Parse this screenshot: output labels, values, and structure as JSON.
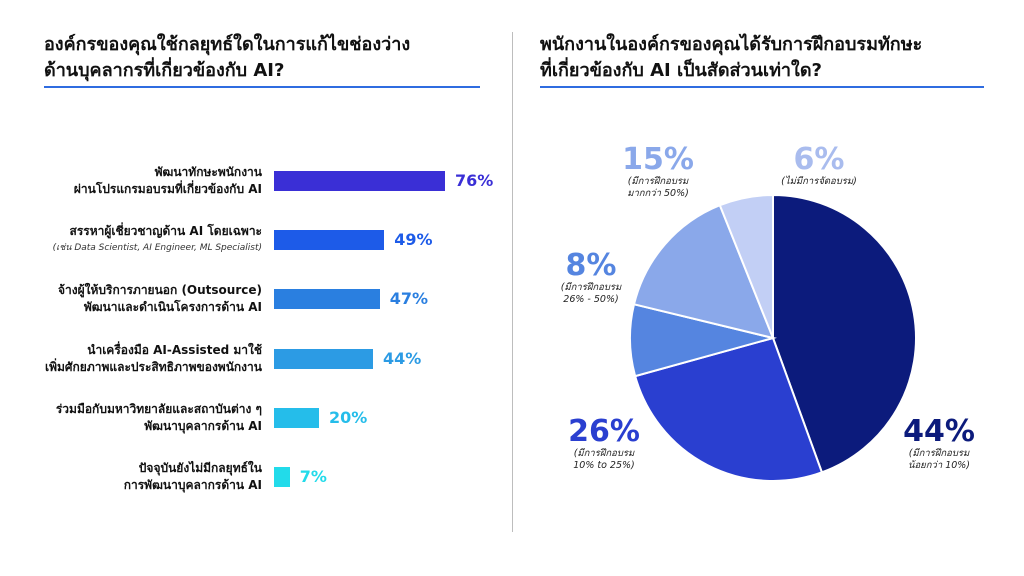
{
  "chart_data": [
    {
      "type": "bar",
      "orientation": "horizontal",
      "title": "องค์กรของคุณใช้กลยุทธ์ใดในการแก้ไขช่องว่าง ด้านบุคลากรที่เกี่ยวข้องกับ AI?",
      "title_lines": [
        "องค์กรของคุณใช้กลยุทธ์ใดในการแก้ไขช่องว่าง",
        "ด้านบุคลากรที่เกี่ยวข้องกับ AI?"
      ],
      "categories": [
        {
          "lines": [
            "พัฒนาทักษะพนักงาน",
            "ผ่านโปรแกรมอบรมที่เกี่ยวข้องกับ AI"
          ],
          "sub": ""
        },
        {
          "lines": [
            "สรรหาผู้เชี่ยวชาญด้าน AI โดยเฉพาะ"
          ],
          "sub": "(เช่น Data Scientist, AI Engineer, ML Specialist)"
        },
        {
          "lines": [
            "จ้างผู้ให้บริการภายนอก (Outsource)",
            "พัฒนาและดำเนินโครงการด้าน AI"
          ],
          "sub": ""
        },
        {
          "lines": [
            "นำเครื่องมือ AI-Assisted มาใช้",
            "เพิ่มศักยภาพและประสิทธิภาพของพนักงาน"
          ],
          "sub": ""
        },
        {
          "lines": [
            "ร่วมมือกับมหาวิทยาลัยและสถาบันต่าง ๆ",
            "พัฒนาบุคลากรด้าน AI"
          ],
          "sub": ""
        },
        {
          "lines": [
            "ปัจจุบันยังไม่มีกลยุทธ์ใน",
            "การพัฒนาบุคลากรด้าน AI"
          ],
          "sub": ""
        }
      ],
      "values": [
        76,
        49,
        47,
        44,
        20,
        7
      ],
      "value_labels": [
        "76%",
        "49%",
        "47%",
        "44%",
        "20%",
        "7%"
      ],
      "colors": [
        "#3a2fd6",
        "#1d5be8",
        "#2a7fe0",
        "#2c9be4",
        "#25bdea",
        "#22dbea"
      ],
      "label_colors": [
        "#3a2fd6",
        "#1d5be8",
        "#2a7fe0",
        "#2c9be4",
        "#25bdea",
        "#22dbea"
      ],
      "xlim": [
        0,
        100
      ]
    },
    {
      "type": "pie",
      "title": "พนักงานในองค์กรของคุณได้รับการฝึกอบรมทักษะ ที่เกี่ยวข้องกับ AI เป็นสัดส่วนเท่าใด?",
      "title_lines": [
        "พนักงานในองค์กรของคุณได้รับการฝึกอบรมทักษะ",
        "ที่เกี่ยวข้องกับ AI เป็นสัดส่วนเท่าใด?"
      ],
      "slices": [
        {
          "pct": "44%",
          "value": 44,
          "desc": [
            "(มีการฝึกอบรม",
            "น้อยกว่า 10%)"
          ],
          "color": "#0c1b7c",
          "label_color": "#0c1b7c"
        },
        {
          "pct": "26%",
          "value": 26,
          "desc": [
            "(มีการฝึกอบรม",
            "10% to 25%)"
          ],
          "color": "#2a3fd0",
          "label_color": "#2a3fd0"
        },
        {
          "pct": "8%",
          "value": 8,
          "desc": [
            "(มีการฝึกอบรม",
            "26% - 50%)"
          ],
          "color": "#5585e0",
          "label_color": "#5585e0"
        },
        {
          "pct": "15%",
          "value": 15,
          "desc": [
            "(มีการฝึกอบรม",
            "มากกว่า 50%)"
          ],
          "color": "#8aa8ea",
          "label_color": "#8aa8ea"
        },
        {
          "pct": "6%",
          "value": 6,
          "desc": [
            "(ไม่มีการจัดอบรม)"
          ],
          "color": "#c2cff5",
          "label_color": "#a9bcee"
        }
      ]
    }
  ]
}
